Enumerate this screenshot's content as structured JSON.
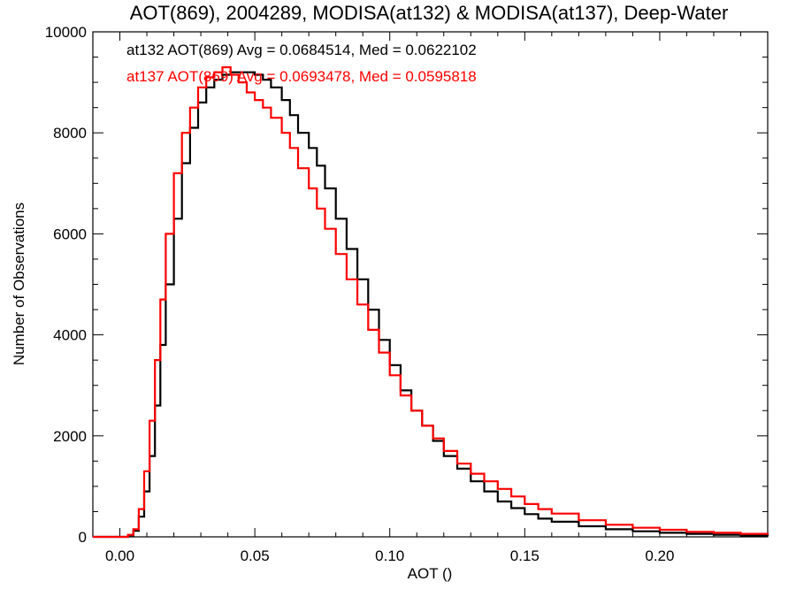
{
  "chart_data": {
    "type": "line",
    "title": "AOT(869), 2004289, MODISA(at132) & MODISA(at137), Deep-Water",
    "xlabel": "AOT ()",
    "ylabel": "Number of Observations",
    "xlim": [
      -0.01,
      0.24
    ],
    "ylim": [
      0,
      10000
    ],
    "x_ticks": [
      0.0,
      0.05,
      0.1,
      0.15,
      0.2
    ],
    "x_tick_labels": [
      "0.00",
      "0.05",
      "0.10",
      "0.15",
      "0.20"
    ],
    "y_ticks": [
      0,
      2000,
      4000,
      6000,
      8000,
      10000
    ],
    "y_tick_labels": [
      "0",
      "2000",
      "4000",
      "6000",
      "8000",
      "10000"
    ],
    "grid": false,
    "legend_position": "top-left",
    "annotations": [
      {
        "text": "at132 AOT(869) Avg = 0.0684514, Med = 0.0622102",
        "color": "#000000"
      },
      {
        "text": "at137 AOT(869) Avg = 0.0693478, Med = 0.0595818",
        "color": "#ff0000"
      }
    ],
    "series": [
      {
        "color": "#000000",
        "step": true,
        "x": [
          -0.01,
          0.0,
          0.003,
          0.005,
          0.007,
          0.009,
          0.011,
          0.013,
          0.015,
          0.017,
          0.02,
          0.023,
          0.026,
          0.029,
          0.032,
          0.035,
          0.038,
          0.041,
          0.044,
          0.047,
          0.05,
          0.053,
          0.056,
          0.06,
          0.063,
          0.066,
          0.07,
          0.073,
          0.076,
          0.08,
          0.084,
          0.088,
          0.092,
          0.096,
          0.1,
          0.104,
          0.108,
          0.112,
          0.116,
          0.12,
          0.125,
          0.13,
          0.135,
          0.14,
          0.145,
          0.15,
          0.155,
          0.16,
          0.17,
          0.18,
          0.19,
          0.2,
          0.21,
          0.22,
          0.23,
          0.24
        ],
        "y": [
          0,
          0,
          30,
          120,
          400,
          900,
          1600,
          2600,
          3800,
          5000,
          6300,
          7400,
          8100,
          8600,
          8900,
          9050,
          9150,
          9200,
          9200,
          9200,
          9150,
          9050,
          8900,
          8650,
          8350,
          8000,
          7700,
          7350,
          6900,
          6300,
          5700,
          5100,
          4500,
          3900,
          3400,
          2900,
          2500,
          2200,
          1900,
          1600,
          1350,
          1100,
          900,
          700,
          570,
          450,
          360,
          300,
          210,
          150,
          110,
          80,
          60,
          40,
          25,
          15
        ]
      },
      {
        "color": "#ff0000",
        "step": true,
        "x": [
          -0.01,
          0.0,
          0.003,
          0.005,
          0.007,
          0.009,
          0.011,
          0.013,
          0.015,
          0.017,
          0.02,
          0.023,
          0.026,
          0.029,
          0.032,
          0.035,
          0.038,
          0.041,
          0.044,
          0.047,
          0.05,
          0.053,
          0.056,
          0.06,
          0.063,
          0.066,
          0.07,
          0.073,
          0.076,
          0.08,
          0.084,
          0.088,
          0.092,
          0.096,
          0.1,
          0.104,
          0.108,
          0.112,
          0.116,
          0.12,
          0.125,
          0.13,
          0.135,
          0.14,
          0.145,
          0.15,
          0.155,
          0.16,
          0.17,
          0.18,
          0.19,
          0.2,
          0.21,
          0.22,
          0.23,
          0.24
        ],
        "y": [
          0,
          0,
          40,
          150,
          550,
          1300,
          2300,
          3500,
          4700,
          6000,
          7200,
          8000,
          8500,
          8900,
          9100,
          9200,
          9300,
          9150,
          9000,
          8800,
          8650,
          8500,
          8300,
          8000,
          7700,
          7300,
          6900,
          6500,
          6100,
          5600,
          5100,
          4600,
          4100,
          3650,
          3200,
          2800,
          2500,
          2200,
          1950,
          1700,
          1450,
          1250,
          1100,
          950,
          800,
          650,
          550,
          460,
          330,
          240,
          180,
          140,
          100,
          80,
          60,
          40
        ]
      }
    ]
  }
}
